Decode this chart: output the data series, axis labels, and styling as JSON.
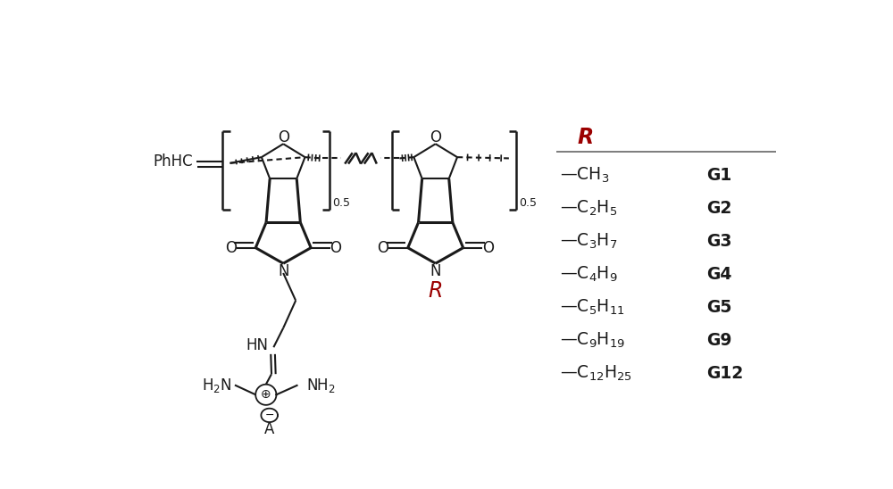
{
  "bg_color": "#ffffff",
  "text_color": "#1a1a1a",
  "red_color": "#9b0000",
  "r_groups": [
    {
      "formula": "—CH$_3$",
      "label": "G1"
    },
    {
      "formula": "—C$_2$H$_5$",
      "label": "G2"
    },
    {
      "formula": "—C$_3$H$_7$",
      "label": "G3"
    },
    {
      "formula": "—C$_4$H$_9$",
      "label": "G4"
    },
    {
      "formula": "—C$_5$H$_{11}$",
      "label": "G5"
    },
    {
      "formula": "—C$_9$H$_{19}$",
      "label": "G9"
    },
    {
      "formula": "—C$_{12}$H$_{25}$",
      "label": "G12"
    }
  ],
  "fontsize_table": 13.5,
  "fontsize_header": 16,
  "fontsize_chem": 12,
  "fontsize_small": 9
}
